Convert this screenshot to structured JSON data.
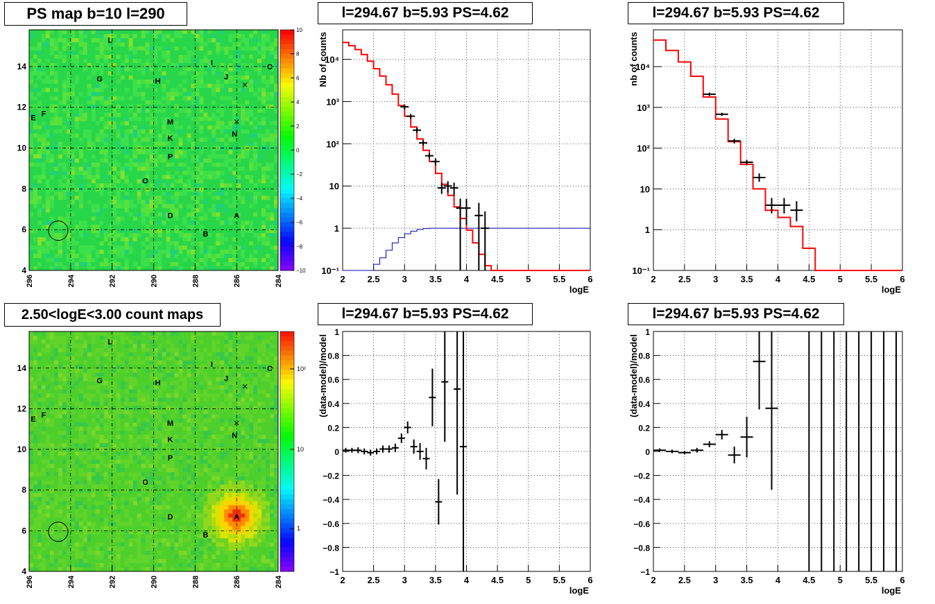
{
  "panels": {
    "ps_map": {
      "title": "PS map b=10 l=290",
      "x_ticks": [
        "296",
        "294",
        "292",
        "290",
        "288",
        "286",
        "284"
      ],
      "y_ticks": [
        "4",
        "6",
        "8",
        "10",
        "12",
        "14"
      ],
      "colorbar_ticks": [
        "10",
        "8",
        "6",
        "4",
        "2",
        "0",
        "−2",
        "−4",
        "−6",
        "−8",
        "−10"
      ],
      "sources": [
        {
          "label": "L",
          "l": 292.1,
          "b": 15.3
        },
        {
          "label": "I",
          "l": 287.2,
          "b": 14.2
        },
        {
          "label": "C",
          "l": 284.4,
          "b": 14.0
        },
        {
          "label": "G",
          "l": 292.6,
          "b": 13.4
        },
        {
          "label": "H",
          "l": 289.8,
          "b": 13.3
        },
        {
          "label": "J",
          "l": 286.5,
          "b": 13.5
        },
        {
          "label": "E",
          "l": 295.8,
          "b": 11.5
        },
        {
          "label": "F",
          "l": 295.3,
          "b": 11.7
        },
        {
          "label": "M",
          "l": 289.2,
          "b": 11.3
        },
        {
          "label": "N",
          "l": 286.1,
          "b": 10.7
        },
        {
          "label": "K",
          "l": 289.2,
          "b": 10.5
        },
        {
          "label": "P",
          "l": 289.2,
          "b": 9.6
        },
        {
          "label": "O",
          "l": 290.4,
          "b": 8.4
        },
        {
          "label": "D",
          "l": 289.2,
          "b": 6.7
        },
        {
          "label": "A",
          "l": 286.0,
          "b": 6.7
        },
        {
          "label": "B",
          "l": 287.5,
          "b": 5.8
        }
      ],
      "crosses": [
        {
          "l": 285.6,
          "b": 13.1
        },
        {
          "l": 286.0,
          "b": 11.3
        }
      ],
      "circle": {
        "l": 294.6,
        "b": 5.95
      }
    },
    "count_map": {
      "title": "2.50<logE<3.00 count maps",
      "x_ticks": [
        "296",
        "294",
        "292",
        "290",
        "288",
        "286",
        "284"
      ],
      "y_ticks": [
        "4",
        "6",
        "8",
        "10",
        "12",
        "14"
      ],
      "colorbar_ticks": [
        "10²",
        "10",
        "1"
      ],
      "hotspot": {
        "label": "A",
        "l": 286.0,
        "b": 6.7
      }
    },
    "spectrum_left": {
      "title": "l=294.67 b=5.93 PS=4.62",
      "xlabel": "logE",
      "ylabel": "Nb of counts",
      "x_ticks": [
        "2",
        "2.5",
        "3",
        "3.5",
        "4",
        "4.5",
        "5",
        "5.5",
        "6"
      ],
      "y_ticks": [
        "10⁻¹",
        "1",
        "10",
        "10²",
        "10³",
        "10⁴"
      ]
    },
    "spectrum_right": {
      "title": "l=294.67 b=5.93 PS=4.62",
      "xlabel": "logE",
      "ylabel": "nb of counts",
      "x_ticks": [
        "2",
        "2.5",
        "3",
        "3.5",
        "4",
        "4.5",
        "5",
        "5.5",
        "6"
      ],
      "y_ticks": [
        "10⁻¹",
        "1",
        "10",
        "10²",
        "10³",
        "10⁴"
      ]
    },
    "residual_left": {
      "title": "l=294.67 b=5.93 PS=4.62",
      "xlabel": "logE",
      "ylabel": "(data-model)/model",
      "x_ticks": [
        "2",
        "2.5",
        "3",
        "3.5",
        "4",
        "4.5",
        "5",
        "5.5",
        "6"
      ],
      "y_ticks": [
        "−1",
        "−0.8",
        "−0.6",
        "−0.4",
        "−0.2",
        "0",
        "0.2",
        "0.4",
        "0.6",
        "0.8",
        "1"
      ]
    },
    "residual_right": {
      "title": "l=294.67 b=5.93 PS=4.62",
      "xlabel": "logE",
      "ylabel": "(data-model)/model",
      "x_ticks": [
        "2",
        "2.5",
        "3",
        "3.5",
        "4",
        "4.5",
        "5",
        "5.5",
        "6"
      ],
      "y_ticks": [
        "−1",
        "−0.8",
        "−0.6",
        "−0.4",
        "−0.2",
        "0",
        "0.2",
        "0.4",
        "0.6",
        "0.8",
        "1"
      ]
    }
  },
  "colors": {
    "model": "#ff0000",
    "exposure": "#0000b0",
    "data": "#000000",
    "map_green": "#22d24a"
  },
  "chart_data": [
    {
      "type": "heatmap",
      "title": "PS map b=10 l=290",
      "xlim": [
        296,
        284
      ],
      "ylim": [
        4,
        15.8
      ],
      "zlim": [
        -10,
        10
      ],
      "grid": true
    },
    {
      "type": "heatmap",
      "title": "2.50<logE<3.00 count maps",
      "xlim": [
        296,
        284
      ],
      "ylim": [
        4,
        15.8
      ],
      "zscale": "log",
      "grid": true
    },
    {
      "type": "line",
      "title": "l=294.67 b=5.93 PS=4.62",
      "xlabel": "logE",
      "ylabel": "Nb of counts",
      "xlim": [
        2,
        6
      ],
      "ylim": [
        0.1,
        50000
      ],
      "yscale": "log",
      "grid": true,
      "model_step": [
        {
          "x": 2.0,
          "y": 25000
        },
        {
          "x": 2.1,
          "y": 21000
        },
        {
          "x": 2.2,
          "y": 17000
        },
        {
          "x": 2.3,
          "y": 13000
        },
        {
          "x": 2.4,
          "y": 9000
        },
        {
          "x": 2.5,
          "y": 6000
        },
        {
          "x": 2.6,
          "y": 4000
        },
        {
          "x": 2.7,
          "y": 2500
        },
        {
          "x": 2.8,
          "y": 1500
        },
        {
          "x": 2.9,
          "y": 800
        },
        {
          "x": 3.0,
          "y": 450
        },
        {
          "x": 3.1,
          "y": 250
        },
        {
          "x": 3.2,
          "y": 130
        },
        {
          "x": 3.3,
          "y": 70
        },
        {
          "x": 3.4,
          "y": 38
        },
        {
          "x": 3.5,
          "y": 20
        },
        {
          "x": 3.6,
          "y": 11
        },
        {
          "x": 3.7,
          "y": 6
        },
        {
          "x": 3.8,
          "y": 3.2
        },
        {
          "x": 3.9,
          "y": 1.7
        },
        {
          "x": 4.0,
          "y": 0.9
        },
        {
          "x": 4.1,
          "y": 0.45
        },
        {
          "x": 4.2,
          "y": 0.24
        },
        {
          "x": 4.3,
          "y": 0.13
        },
        {
          "x": 4.4,
          "y": 0.1
        },
        {
          "x": 6.0,
          "y": 0.1
        }
      ],
      "exposure_step": [
        {
          "x": 2.0,
          "y": 0.1
        },
        {
          "x": 2.4,
          "y": 0.1
        },
        {
          "x": 2.5,
          "y": 0.14
        },
        {
          "x": 2.6,
          "y": 0.2
        },
        {
          "x": 2.7,
          "y": 0.3
        },
        {
          "x": 2.8,
          "y": 0.45
        },
        {
          "x": 2.9,
          "y": 0.6
        },
        {
          "x": 3.0,
          "y": 0.74
        },
        {
          "x": 3.1,
          "y": 0.85
        },
        {
          "x": 3.2,
          "y": 0.93
        },
        {
          "x": 3.3,
          "y": 0.98
        },
        {
          "x": 3.4,
          "y": 1.0
        },
        {
          "x": 6.0,
          "y": 1.0
        }
      ],
      "data_points": [
        {
          "x": 3.0,
          "y": 750,
          "lo": 650,
          "hi": 860
        },
        {
          "x": 3.1,
          "y": 450,
          "lo": 390,
          "hi": 510
        },
        {
          "x": 3.2,
          "y": 210,
          "lo": 180,
          "hi": 240
        },
        {
          "x": 3.3,
          "y": 105,
          "lo": 90,
          "hi": 120
        },
        {
          "x": 3.4,
          "y": 52,
          "lo": 45,
          "hi": 60
        },
        {
          "x": 3.5,
          "y": 38,
          "lo": 31,
          "hi": 45
        },
        {
          "x": 3.6,
          "y": 9,
          "lo": 6.5,
          "hi": 12
        },
        {
          "x": 3.7,
          "y": 10,
          "lo": 7,
          "hi": 13
        },
        {
          "x": 3.8,
          "y": 9,
          "lo": 6,
          "hi": 12
        },
        {
          "x": 3.9,
          "y": 3,
          "lo": 0.1,
          "hi": 5
        },
        {
          "x": 4.0,
          "y": 3,
          "lo": 1.2,
          "hi": 5
        },
        {
          "x": 4.2,
          "y": 2,
          "lo": 0.1,
          "hi": 4
        },
        {
          "x": 4.3,
          "y": 1,
          "lo": 0.1,
          "hi": 2.5
        }
      ]
    },
    {
      "type": "line",
      "title": "l=294.67 b=5.93 PS=4.62",
      "xlabel": "logE",
      "ylabel": "nb of counts",
      "xlim": [
        2,
        6
      ],
      "ylim": [
        0.1,
        80000
      ],
      "yscale": "log",
      "grid": true,
      "model_step": [
        {
          "x": 2.0,
          "y": 45000
        },
        {
          "x": 2.2,
          "y": 25000
        },
        {
          "x": 2.4,
          "y": 13000
        },
        {
          "x": 2.6,
          "y": 5800
        },
        {
          "x": 2.8,
          "y": 1800
        },
        {
          "x": 3.0,
          "y": 520
        },
        {
          "x": 3.2,
          "y": 145
        },
        {
          "x": 3.4,
          "y": 40
        },
        {
          "x": 3.6,
          "y": 10
        },
        {
          "x": 3.8,
          "y": 3
        },
        {
          "x": 4.0,
          "y": 2
        },
        {
          "x": 4.2,
          "y": 1.2
        },
        {
          "x": 4.4,
          "y": 0.35
        },
        {
          "x": 4.6,
          "y": 0.1
        },
        {
          "x": 6.0,
          "y": 0.1
        }
      ],
      "data_points": [
        {
          "x": 2.9,
          "y": 2100,
          "lo": 1900,
          "hi": 2300
        },
        {
          "x": 3.1,
          "y": 680,
          "lo": 620,
          "hi": 740
        },
        {
          "x": 3.3,
          "y": 150,
          "lo": 130,
          "hi": 170
        },
        {
          "x": 3.5,
          "y": 45,
          "lo": 39,
          "hi": 52
        },
        {
          "x": 3.7,
          "y": 19,
          "lo": 15,
          "hi": 24
        },
        {
          "x": 3.9,
          "y": 4,
          "lo": 2.5,
          "hi": 6
        },
        {
          "x": 4.1,
          "y": 4,
          "lo": 2.5,
          "hi": 6
        },
        {
          "x": 4.3,
          "y": 3,
          "lo": 1.6,
          "hi": 5
        }
      ]
    },
    {
      "type": "scatter",
      "title": "l=294.67 b=5.93 PS=4.62",
      "xlabel": "logE",
      "ylabel": "(data-model)/model",
      "xlim": [
        2,
        6
      ],
      "ylim": [
        -1,
        1
      ],
      "grid": true,
      "points": [
        {
          "x": 2.05,
          "y": 0.01,
          "err": 0.02
        },
        {
          "x": 2.15,
          "y": 0.01,
          "err": 0.02
        },
        {
          "x": 2.25,
          "y": 0.01,
          "err": 0.025
        },
        {
          "x": 2.35,
          "y": 0.0,
          "err": 0.025
        },
        {
          "x": 2.45,
          "y": -0.01,
          "err": 0.025
        },
        {
          "x": 2.55,
          "y": 0.0,
          "err": 0.025
        },
        {
          "x": 2.65,
          "y": 0.02,
          "err": 0.03
        },
        {
          "x": 2.75,
          "y": 0.02,
          "err": 0.03
        },
        {
          "x": 2.85,
          "y": 0.03,
          "err": 0.035
        },
        {
          "x": 2.95,
          "y": 0.11,
          "err": 0.04
        },
        {
          "x": 3.05,
          "y": 0.2,
          "err": 0.05
        },
        {
          "x": 3.15,
          "y": 0.04,
          "err": 0.06
        },
        {
          "x": 3.25,
          "y": 0.0,
          "err": 0.07
        },
        {
          "x": 3.35,
          "y": -0.06,
          "err": 0.09
        },
        {
          "x": 3.45,
          "y": 0.45,
          "err": 0.24
        },
        {
          "x": 3.55,
          "y": -0.42,
          "err": 0.19
        },
        {
          "x": 3.65,
          "y": 0.58,
          "err": 0.5
        },
        {
          "x": 3.85,
          "y": 0.52,
          "err": 0.88
        },
        {
          "x": 3.95,
          "y": 0.04,
          "err": 1.2
        }
      ]
    },
    {
      "type": "scatter",
      "title": "l=294.67 b=5.93 PS=4.62",
      "xlabel": "logE",
      "ylabel": "(data-model)/model",
      "xlim": [
        2,
        6
      ],
      "ylim": [
        -1,
        1
      ],
      "grid": true,
      "points": [
        {
          "x": 2.1,
          "y": 0.01,
          "err": 0.015
        },
        {
          "x": 2.3,
          "y": 0.0,
          "err": 0.015
        },
        {
          "x": 2.5,
          "y": -0.01,
          "err": 0.015
        },
        {
          "x": 2.7,
          "y": 0.01,
          "err": 0.02
        },
        {
          "x": 2.9,
          "y": 0.06,
          "err": 0.025
        },
        {
          "x": 3.1,
          "y": 0.14,
          "err": 0.04
        },
        {
          "x": 3.3,
          "y": -0.03,
          "err": 0.07
        },
        {
          "x": 3.5,
          "y": 0.12,
          "err": 0.17
        },
        {
          "x": 3.7,
          "y": 0.75,
          "err": 0.4
        },
        {
          "x": 3.9,
          "y": 0.36,
          "err": 0.68
        },
        {
          "x": 4.5,
          "y": 0,
          "err": 1.5
        },
        {
          "x": 4.7,
          "y": 0,
          "err": 1.5
        },
        {
          "x": 4.9,
          "y": 0,
          "err": 1.5
        },
        {
          "x": 5.1,
          "y": 0,
          "err": 1.5
        },
        {
          "x": 5.3,
          "y": 0,
          "err": 1.5
        },
        {
          "x": 5.5,
          "y": 0,
          "err": 1.5
        },
        {
          "x": 5.7,
          "y": 0,
          "err": 1.5
        },
        {
          "x": 5.9,
          "y": 0,
          "err": 1.5
        }
      ]
    }
  ]
}
